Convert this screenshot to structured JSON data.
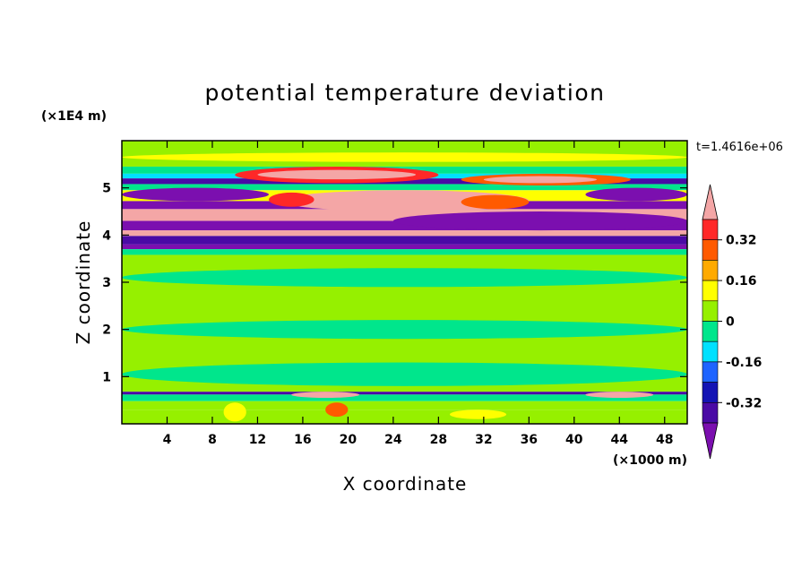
{
  "chart_data": {
    "type": "heatmap",
    "title": "potential temperature deviation",
    "xlabel": "X coordinate",
    "ylabel": "Z coordinate",
    "x_unit": "(×1000 m)",
    "y_unit": "(×1E4 m)",
    "time_label": "t=1.4616e+06",
    "xlim": [
      0,
      50
    ],
    "ylim": [
      0,
      6
    ],
    "x_ticks": [
      4,
      8,
      12,
      16,
      20,
      24,
      28,
      32,
      36,
      40,
      44,
      48
    ],
    "y_ticks": [
      1,
      2,
      3,
      4,
      5
    ],
    "colorbar": {
      "levels": [
        -0.4,
        -0.32,
        -0.24,
        -0.16,
        -0.08,
        0,
        0.08,
        0.16,
        0.24,
        0.32,
        0.4
      ],
      "labeled_levels": [
        0.32,
        0.16,
        0,
        -0.16,
        -0.32
      ],
      "colors": [
        "#7b0faf",
        "#4a0aa5",
        "#1414b4",
        "#1e64ff",
        "#00e1ff",
        "#00e68c",
        "#96f000",
        "#ffff00",
        "#ffaa00",
        "#ff5a00",
        "#ff2828",
        "#f4a6a6"
      ],
      "extend": "both"
    },
    "bands": [
      {
        "z0": 5.45,
        "z1": 6.0,
        "level": 6
      },
      {
        "z0": 5.3,
        "z1": 5.45,
        "level": 5
      },
      {
        "z0": 5.2,
        "z1": 5.3,
        "level": 4
      },
      {
        "z0": 5.08,
        "z1": 5.2,
        "level": 1
      },
      {
        "z0": 4.95,
        "z1": 5.08,
        "level": 5
      },
      {
        "z0": 4.72,
        "z1": 4.95,
        "level": 7
      },
      {
        "z0": 4.55,
        "z1": 4.72,
        "level": 0
      },
      {
        "z0": 4.3,
        "z1": 4.55,
        "level": 11
      },
      {
        "z0": 4.1,
        "z1": 4.3,
        "level": 0
      },
      {
        "z0": 3.98,
        "z1": 4.1,
        "level": 11
      },
      {
        "z0": 3.8,
        "z1": 3.98,
        "level": 1
      },
      {
        "z0": 3.7,
        "z1": 3.8,
        "level": 0
      },
      {
        "z0": 3.58,
        "z1": 3.7,
        "level": 5
      },
      {
        "z0": 0.68,
        "z1": 3.58,
        "level": 6
      },
      {
        "z0": 0.62,
        "z1": 0.68,
        "level": 1
      },
      {
        "z0": 0.48,
        "z1": 0.62,
        "level": 5
      },
      {
        "z0": 0.3,
        "z1": 0.48,
        "level": 6
      },
      {
        "z0": 0.0,
        "z1": 0.3,
        "level": 6
      }
    ],
    "features": [
      {
        "x0": 0,
        "x1": 50,
        "z0": 5.55,
        "z1": 5.75,
        "level": 7
      },
      {
        "x0": 10,
        "x1": 28,
        "z0": 5.1,
        "z1": 5.45,
        "level": 10
      },
      {
        "x0": 12,
        "x1": 26,
        "z0": 5.18,
        "z1": 5.38,
        "level": 11
      },
      {
        "x0": 30,
        "x1": 45,
        "z0": 5.05,
        "z1": 5.3,
        "level": 9
      },
      {
        "x0": 32,
        "x1": 42,
        "z0": 5.1,
        "z1": 5.25,
        "level": 11
      },
      {
        "x0": 14,
        "x1": 36,
        "z0": 4.5,
        "z1": 4.95,
        "level": 11
      },
      {
        "x0": 13,
        "x1": 17,
        "z0": 4.6,
        "z1": 4.9,
        "level": 10
      },
      {
        "x0": 30,
        "x1": 36,
        "z0": 4.55,
        "z1": 4.85,
        "level": 9
      },
      {
        "x0": 0,
        "x1": 13,
        "z0": 4.72,
        "z1": 5.0,
        "level": 0
      },
      {
        "x0": 41,
        "x1": 50,
        "z0": 4.72,
        "z1": 5.0,
        "level": 0
      },
      {
        "x0": 24,
        "x1": 50,
        "z0": 4.1,
        "z1": 4.5,
        "level": 0
      },
      {
        "x0": 0,
        "x1": 50,
        "z0": 2.9,
        "z1": 3.3,
        "level": 5
      },
      {
        "x0": 0,
        "x1": 50,
        "z0": 1.8,
        "z1": 2.2,
        "level": 5
      },
      {
        "x0": 0,
        "x1": 50,
        "z0": 0.8,
        "z1": 1.3,
        "level": 5
      },
      {
        "x0": 15,
        "x1": 21,
        "z0": 0.55,
        "z1": 0.68,
        "level": 11
      },
      {
        "x0": 41,
        "x1": 47,
        "z0": 0.55,
        "z1": 0.68,
        "level": 11
      },
      {
        "x0": 9,
        "x1": 11,
        "z0": 0.05,
        "z1": 0.45,
        "level": 7
      },
      {
        "x0": 18,
        "x1": 20,
        "z0": 0.15,
        "z1": 0.45,
        "level": 9
      },
      {
        "x0": 29,
        "x1": 34,
        "z0": 0.1,
        "z1": 0.3,
        "level": 7
      }
    ]
  }
}
